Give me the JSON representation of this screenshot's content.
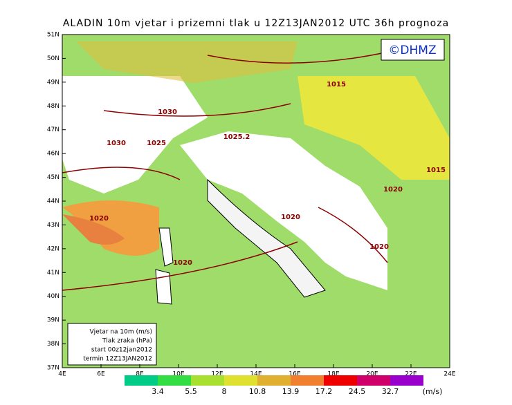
{
  "title": "ALADIN 10m vjetar i prizemni tlak u 12Z13JAN2012 UTC 36h prognoza",
  "logo": "©DHMZ",
  "lat_labels": [
    "51N",
    "50N",
    "49N",
    "48N",
    "47N",
    "46N",
    "45N",
    "44N",
    "43N",
    "42N",
    "41N",
    "40N",
    "39N",
    "38N",
    "37N"
  ],
  "lon_labels": [
    "4E",
    "6E",
    "8E",
    "10E",
    "12E",
    "14E",
    "16E",
    "18E",
    "20E",
    "22E",
    "24E"
  ],
  "isobars": [
    {
      "label": "1030",
      "pos": "a"
    },
    {
      "label": "1030",
      "pos": "b"
    },
    {
      "label": "1025",
      "pos": "c"
    },
    {
      "label": "1025.2",
      "pos": "d"
    },
    {
      "label": "1015",
      "pos": "e"
    },
    {
      "label": "1020",
      "pos": "f"
    },
    {
      "label": "1020",
      "pos": "g"
    },
    {
      "label": "1020",
      "pos": "h"
    },
    {
      "label": "1020",
      "pos": "i"
    },
    {
      "label": "1020",
      "pos": "j"
    },
    {
      "label": "1015",
      "pos": "k"
    }
  ],
  "info_box": [
    "Vjetar na 10m (m/s)",
    "Tlak zraka (hPa)",
    "start 00z12jan2012",
    "termin 12Z13JAN2012"
  ],
  "colorbar": {
    "levels": [
      3.4,
      5.5,
      8,
      10.8,
      13.9,
      17.2,
      24.5,
      32.7
    ],
    "colors": [
      "#00cc88",
      "#33dd44",
      "#a8e030",
      "#e0e030",
      "#e0b030",
      "#f08030",
      "#ee0000",
      "#d0006a",
      "#9900cc"
    ],
    "unit": "(m/s)"
  }
}
